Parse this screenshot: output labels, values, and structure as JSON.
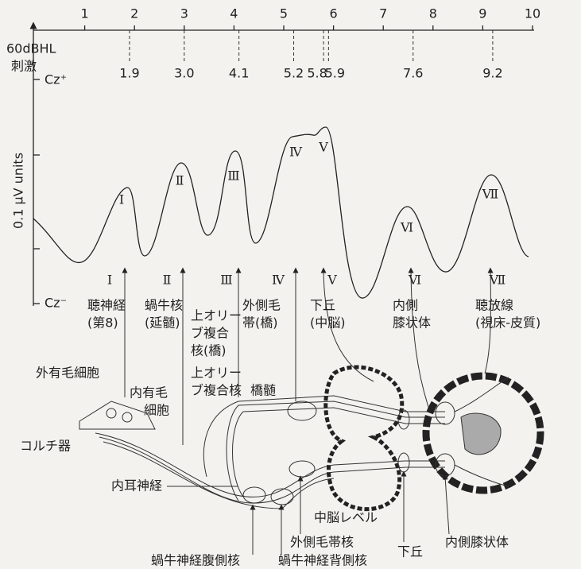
{
  "axis": {
    "ticks": [
      1,
      2,
      3,
      4,
      5,
      6,
      7,
      8,
      9,
      10
    ],
    "stimulus_level": "60dBHL",
    "stimulus": "刺激",
    "cz_plus": "Cz⁺",
    "cz_minus": "Cz⁻",
    "y_label": "0.1 μV units"
  },
  "latencies": [
    1.9,
    {
      "value": 3,
      "label": "3.0"
    },
    4.1,
    5.2,
    5.8,
    5.9,
    7.6,
    9.2
  ],
  "waves": [
    {
      "numeral": "Ⅰ",
      "label": [
        "聴神経",
        "(第8)"
      ]
    },
    {
      "numeral": "Ⅱ",
      "label": [
        "蝸牛核",
        "(延髄)"
      ]
    },
    {
      "numeral": "Ⅲ",
      "label": [
        "上オリー",
        "ブ複合",
        "核(橋)"
      ]
    },
    {
      "numeral": "Ⅳ",
      "label": [
        "外側毛",
        "帯(橋)"
      ]
    },
    {
      "numeral": "Ⅴ",
      "label": [
        "下丘",
        "(中脳)"
      ]
    },
    {
      "numeral": "Ⅵ",
      "label": [
        "内側",
        "膝状体"
      ]
    },
    {
      "numeral": "Ⅶ",
      "label": [
        "聴放線",
        "(視床-皮質)"
      ]
    }
  ],
  "anatomy": [
    {
      "label": [
        "外有毛細胞"
      ]
    },
    {
      "label": [
        "内有毛",
        "細胞"
      ]
    },
    {
      "label": [
        "コルチ器"
      ]
    },
    {
      "label": [
        "上オリー",
        "ブ複合核"
      ]
    },
    {
      "label": [
        "橋髄"
      ]
    },
    {
      "label": [
        "内耳神経"
      ]
    },
    {
      "label": [
        "中脳レベル"
      ]
    },
    {
      "label": [
        "外側毛帯核"
      ]
    },
    {
      "label": [
        "下丘"
      ]
    },
    {
      "label": [
        "内側膝状体"
      ]
    },
    {
      "label": [
        "蝸牛神経腹側核"
      ]
    },
    {
      "label": [
        "蝸牛神経背側核"
      ]
    }
  ]
}
